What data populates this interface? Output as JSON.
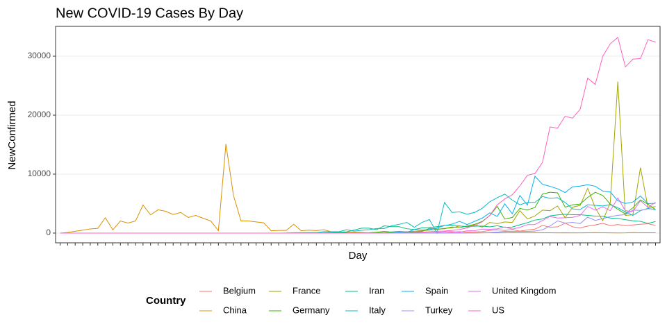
{
  "chart_data": {
    "type": "line",
    "title": "New COVID-19 Cases By Day",
    "x_label": "Day",
    "y_label": "NewConfirmed",
    "legend_title": "Country",
    "categories": [
      null,
      null,
      null,
      null,
      null,
      null,
      null,
      null,
      null,
      null,
      null,
      null,
      null,
      null,
      null,
      null,
      null,
      null,
      null,
      null,
      null,
      null,
      null,
      null,
      null,
      null,
      null,
      null,
      null,
      null,
      null,
      null,
      null,
      null,
      null,
      null,
      null,
      null,
      null,
      null,
      null,
      null,
      null,
      null,
      null,
      null,
      null,
      null,
      null,
      null,
      null,
      null,
      null,
      null,
      null,
      null,
      null,
      null,
      null,
      null,
      null,
      null,
      null,
      null,
      null,
      null,
      null,
      null,
      null,
      null,
      null,
      null,
      null,
      null,
      null,
      null,
      null,
      null,
      null,
      null
    ],
    "ylim": [
      -1650,
      35060
    ],
    "yticks": [
      0,
      10000,
      20000,
      30000
    ],
    "grid": true,
    "series": [
      {
        "name": "Belgium",
        "color": "#F8766D",
        "values": [
          0,
          0,
          0,
          0,
          0,
          0,
          0,
          0,
          0,
          0,
          0,
          0,
          0,
          0,
          0,
          0,
          0,
          0,
          0,
          0,
          0,
          0,
          0,
          0,
          0,
          0,
          0,
          0,
          0,
          0,
          0,
          0,
          0,
          0,
          0,
          0,
          0,
          0,
          0,
          0,
          1,
          6,
          5,
          10,
          27,
          59,
          60,
          31,
          39,
          28,
          100,
          200,
          150,
          250,
          170,
          200,
          250,
          460,
          550,
          460,
          590,
          340,
          530,
          670,
          1300,
          1000,
          1050,
          1700,
          1060,
          880,
          1190,
          1380,
          1660,
          1260,
          1450,
          1260,
          1380,
          1500,
          1580,
          1300
        ]
      },
      {
        "name": "China",
        "color": "#D89000",
        "values": [
          0,
          100,
          300,
          500,
          700,
          800,
          2600,
          550,
          2050,
          1700,
          2050,
          4750,
          3100,
          3950,
          3700,
          3150,
          3500,
          2650,
          3000,
          2500,
          2050,
          400,
          15100,
          6400,
          2050,
          2050,
          1900,
          1750,
          400,
          450,
          450,
          1500,
          400,
          500,
          430,
          570,
          200,
          125,
          120,
          140,
          100,
          45,
          20,
          30,
          25,
          40,
          50,
          20,
          30,
          20,
          10,
          10,
          20,
          25,
          20,
          30,
          40,
          50,
          40,
          50,
          80,
          50,
          70,
          100,
          50,
          50,
          40,
          60,
          40,
          40,
          60,
          80,
          50,
          40,
          30,
          40,
          80,
          60,
          60,
          50
        ]
      },
      {
        "name": "France",
        "color": "#A3A500",
        "values": [
          0,
          0,
          0,
          0,
          0,
          0,
          0,
          0,
          0,
          0,
          0,
          0,
          0,
          0,
          0,
          0,
          0,
          0,
          0,
          0,
          0,
          0,
          0,
          0,
          0,
          0,
          0,
          0,
          0,
          0,
          0,
          0,
          0,
          2,
          4,
          20,
          19,
          43,
          30,
          30,
          60,
          60,
          80,
          90,
          200,
          300,
          200,
          300,
          400,
          500,
          600,
          800,
          900,
          1200,
          1100,
          1400,
          1000,
          1800,
          1600,
          1900,
          1800,
          3800,
          2400,
          2900,
          3900,
          3800,
          4600,
          2600,
          4400,
          4700,
          7600,
          4300,
          2100,
          5200,
          25700,
          3000,
          3100,
          11100,
          4300,
          4500
        ]
      },
      {
        "name": "Germany",
        "color": "#39B600",
        "values": [
          0,
          0,
          0,
          0,
          0,
          0,
          0,
          0,
          0,
          0,
          0,
          0,
          0,
          0,
          0,
          0,
          0,
          0,
          0,
          0,
          0,
          0,
          0,
          0,
          0,
          0,
          0,
          0,
          0,
          0,
          0,
          0,
          0,
          1,
          10,
          19,
          2,
          31,
          51,
          29,
          37,
          66,
          138,
          284,
          163,
          55,
          237,
          157,
          271,
          802,
          693,
          733,
          1043,
          910,
          1210,
          1477,
          1985,
          2960,
          4530,
          2370,
          2660,
          4180,
          3930,
          4340,
          6620,
          6930,
          6820,
          4400,
          4790,
          4920,
          6060,
          6920,
          6370,
          4930,
          4030,
          3250,
          4290,
          5630,
          4890,
          3990
        ]
      },
      {
        "name": "Iran",
        "color": "#00BF7D",
        "values": [
          0,
          0,
          0,
          0,
          0,
          0,
          0,
          0,
          0,
          0,
          0,
          0,
          0,
          0,
          0,
          0,
          0,
          0,
          0,
          0,
          0,
          0,
          0,
          0,
          0,
          0,
          0,
          0,
          2,
          3,
          13,
          10,
          15,
          18,
          28,
          44,
          106,
          143,
          205,
          520,
          840,
          840,
          590,
          1230,
          1080,
          1080,
          740,
          600,
          880,
          960,
          1080,
          1290,
          1370,
          1210,
          1050,
          1180,
          1190,
          1050,
          1240,
          970,
          1030,
          1410,
          1760,
          2210,
          2390,
          2930,
          3080,
          3190,
          3110,
          3110,
          2990,
          2880,
          2870,
          2560,
          2480,
          2270,
          2090,
          1990,
          1630,
          1970
        ]
      },
      {
        "name": "Italy",
        "color": "#00BFC4",
        "values": [
          0,
          0,
          0,
          0,
          0,
          0,
          0,
          0,
          0,
          0,
          0,
          0,
          0,
          0,
          0,
          0,
          0,
          0,
          0,
          0,
          0,
          0,
          0,
          0,
          0,
          0,
          0,
          0,
          0,
          0,
          16,
          62,
          77,
          93,
          78,
          250,
          238,
          240,
          566,
          340,
          470,
          590,
          770,
          780,
          1250,
          1490,
          1800,
          980,
          1800,
          2300,
          0,
          5200,
          3500,
          3600,
          3200,
          3500,
          4200,
          5300,
          6000,
          6600,
          5600,
          4800,
          5200,
          5200,
          6200,
          5900,
          6000,
          5200,
          4100,
          4000,
          4800,
          4700,
          4600,
          4800,
          4300,
          3600,
          3000,
          3800,
          4200,
          3950
        ]
      },
      {
        "name": "Spain",
        "color": "#00B0F6",
        "values": [
          0,
          0,
          0,
          0,
          0,
          0,
          0,
          0,
          0,
          0,
          0,
          0,
          0,
          0,
          0,
          0,
          0,
          0,
          0,
          0,
          0,
          0,
          0,
          0,
          0,
          0,
          0,
          0,
          0,
          0,
          0,
          0,
          0,
          4,
          5,
          2,
          8,
          13,
          13,
          20,
          30,
          40,
          50,
          60,
          100,
          170,
          120,
          600,
          500,
          600,
          870,
          1270,
          1520,
          2000,
          1440,
          1990,
          2540,
          3430,
          2830,
          4950,
          3270,
          6370,
          4750,
          9630,
          8270,
          7930,
          7520,
          6880,
          7850,
          7970,
          8200,
          7950,
          7130,
          6970,
          5480,
          5030,
          5270,
          6280,
          5000,
          5050
        ]
      },
      {
        "name": "Turkey",
        "color": "#9590FF",
        "values": [
          0,
          0,
          0,
          0,
          0,
          0,
          0,
          0,
          0,
          0,
          0,
          0,
          0,
          0,
          0,
          0,
          0,
          0,
          0,
          0,
          0,
          0,
          0,
          0,
          0,
          0,
          0,
          0,
          0,
          0,
          0,
          0,
          0,
          0,
          0,
          0,
          0,
          0,
          0,
          0,
          0,
          0,
          0,
          0,
          0,
          0,
          0,
          0,
          0,
          1,
          0,
          1,
          3,
          1,
          12,
          29,
          51,
          93,
          168,
          311,
          277,
          289,
          293,
          343,
          561,
          1196,
          2069,
          1704,
          1815,
          1610,
          2704,
          2148,
          2456,
          2786,
          3013,
          3135,
          3892,
          3848,
          4117,
          4056
        ]
      },
      {
        "name": "United Kingdom",
        "color": "#E76BF3",
        "values": [
          0,
          0,
          0,
          0,
          0,
          0,
          0,
          0,
          0,
          0,
          0,
          0,
          0,
          0,
          0,
          0,
          0,
          0,
          0,
          0,
          0,
          0,
          0,
          0,
          0,
          0,
          0,
          0,
          0,
          0,
          0,
          0,
          0,
          4,
          0,
          2,
          5,
          3,
          12,
          13,
          4,
          11,
          34,
          30,
          48,
          43,
          67,
          48,
          61,
          50,
          130,
          200,
          250,
          150,
          400,
          410,
          680,
          650,
          720,
          1040,
          670,
          970,
          1430,
          1460,
          2140,
          2810,
          2560,
          2600,
          2680,
          3010,
          4520,
          3900,
          4450,
          3790,
          5950,
          3810,
          3640,
          5500,
          4350,
          5230
        ]
      },
      {
        "name": "US",
        "color": "#FF62BC",
        "values": [
          0,
          0,
          0,
          0,
          0,
          0,
          0,
          0,
          0,
          0,
          0,
          0,
          0,
          0,
          0,
          0,
          0,
          0,
          0,
          0,
          0,
          0,
          0,
          0,
          0,
          0,
          0,
          0,
          0,
          0,
          0,
          0,
          0,
          0,
          0,
          1,
          0,
          3,
          0,
          8,
          5,
          10,
          20,
          30,
          50,
          70,
          100,
          120,
          150,
          250,
          300,
          350,
          450,
          600,
          900,
          1300,
          1900,
          3000,
          4800,
          5800,
          6500,
          8000,
          9800,
          10100,
          12000,
          18000,
          17800,
          19800,
          19500,
          21000,
          26300,
          25200,
          30000,
          32100,
          33200,
          28200,
          29500,
          29600,
          32800,
          32400
        ]
      }
    ]
  }
}
